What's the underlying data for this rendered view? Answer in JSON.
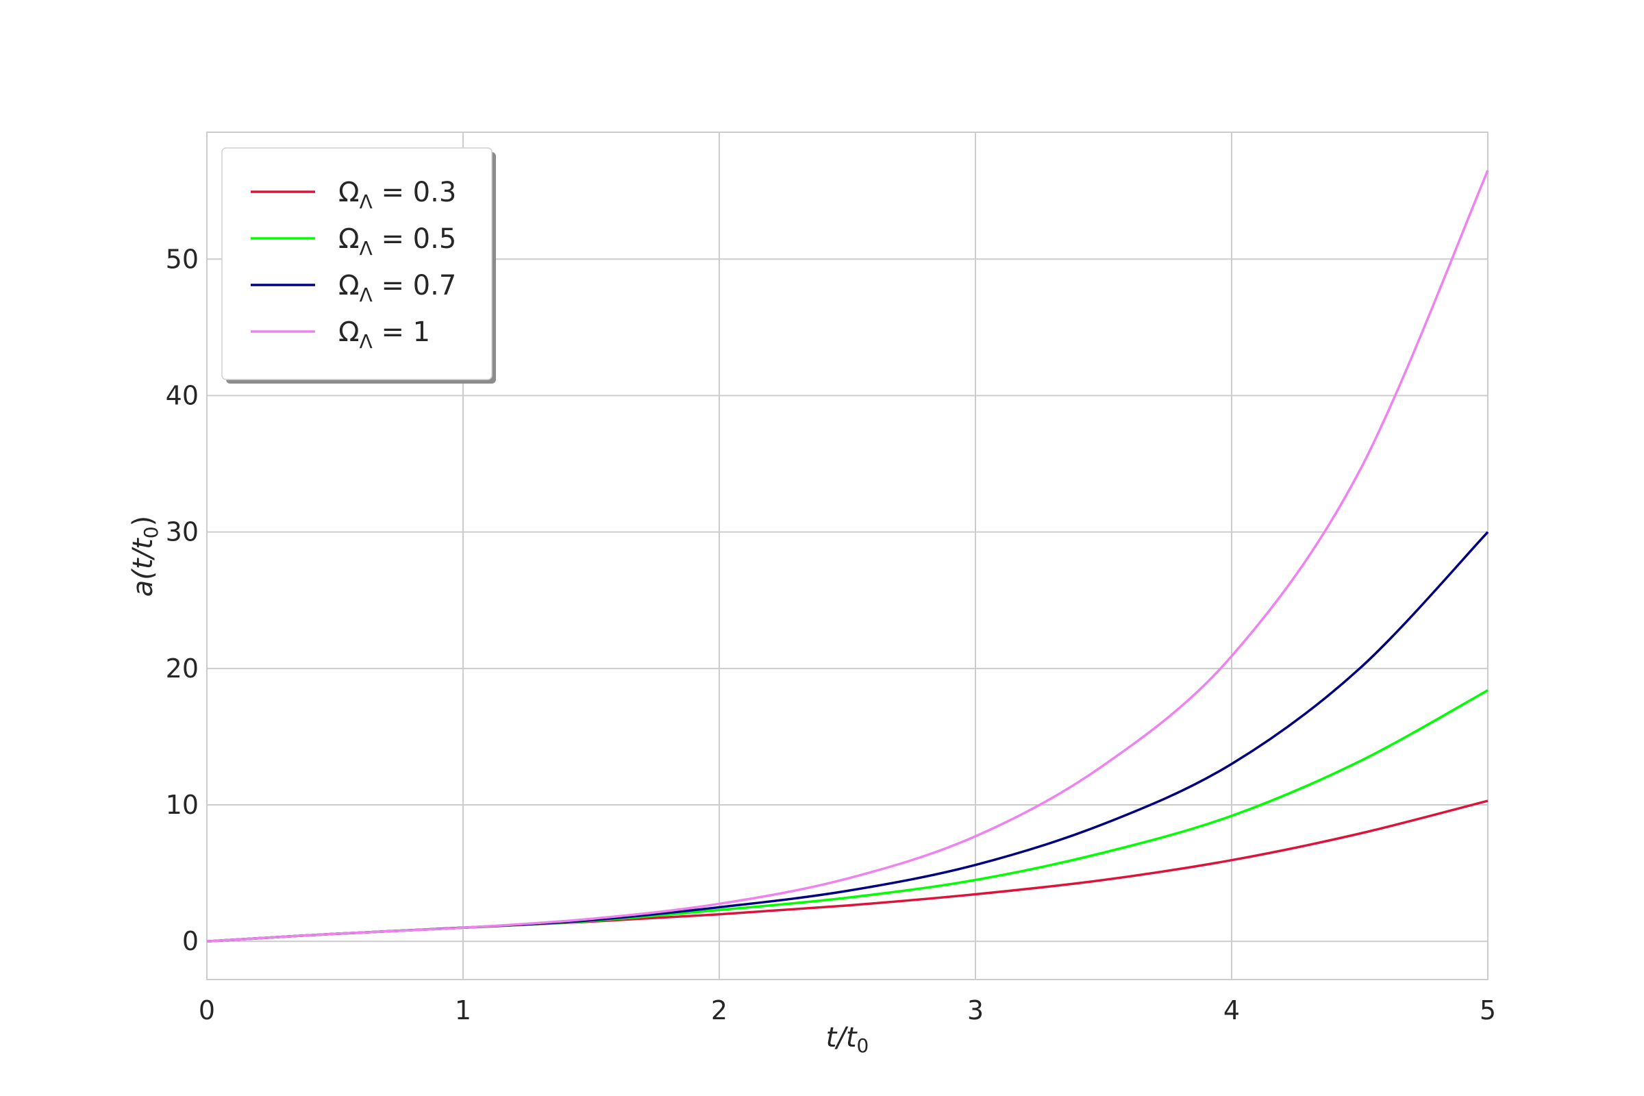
{
  "chart_data": {
    "type": "line",
    "x_range": [
      0,
      5
    ],
    "y_range": [
      -2.8,
      59.3
    ],
    "x_ticks": [
      "0",
      "1",
      "2",
      "3",
      "4",
      "5"
    ],
    "y_ticks": [
      "0",
      "10",
      "20",
      "30",
      "40",
      "50"
    ],
    "x_tick_values": [
      0,
      1,
      2,
      3,
      4,
      5
    ],
    "y_tick_values": [
      0,
      10,
      20,
      30,
      40,
      50
    ],
    "grid": true,
    "legend_position": "top-left",
    "xlabel": {
      "main": "t/t",
      "sub": "0"
    },
    "ylabel": {
      "main": "a(t/t",
      "sub": "0",
      "close": ")"
    },
    "series": [
      {
        "name": {
          "base": "Ω",
          "sub": "Λ",
          "rest": " = 0.3"
        },
        "color": "#DC143C",
        "x": [
          0,
          0.5,
          1,
          1.5,
          2,
          2.5,
          3,
          3.5,
          4,
          4.5,
          5
        ],
        "y": [
          0,
          0.55,
          1.0,
          1.45,
          1.98,
          2.63,
          3.45,
          4.5,
          5.95,
          7.9,
          10.3
        ]
      },
      {
        "name": {
          "base": "Ω",
          "sub": "Λ",
          "rest": " = 0.5"
        },
        "color": "#00FF00",
        "x": [
          0,
          0.5,
          1,
          1.5,
          2,
          2.5,
          3,
          3.5,
          4,
          4.5,
          5
        ],
        "y": [
          0,
          0.55,
          1.0,
          1.5,
          2.3,
          3.2,
          4.5,
          6.5,
          9.2,
          13.2,
          18.4
        ]
      },
      {
        "name": {
          "base": "Ω",
          "sub": "Λ",
          "rest": " = 0.7"
        },
        "color": "#000080",
        "x": [
          0,
          0.5,
          1,
          1.5,
          2,
          2.5,
          3,
          3.5,
          4,
          4.5,
          5
        ],
        "y": [
          0,
          0.55,
          1.0,
          1.55,
          2.5,
          3.7,
          5.6,
          8.6,
          13.0,
          20.0,
          30.0
        ]
      },
      {
        "name": {
          "base": "Ω",
          "sub": "Λ",
          "rest": " = 1"
        },
        "color": "#EE82EE",
        "x": [
          0,
          0.5,
          1,
          1.5,
          2,
          2.5,
          3,
          3.5,
          4,
          4.5,
          5
        ],
        "y": [
          0,
          0.55,
          1.0,
          1.65,
          2.75,
          4.6,
          7.7,
          12.9,
          20.9,
          34.5,
          56.5
        ]
      }
    ]
  }
}
